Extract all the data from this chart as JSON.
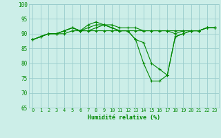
{
  "xlabel": "Humidité relative (%)",
  "xlim": [
    -0.5,
    23.5
  ],
  "ylim": [
    65,
    100
  ],
  "yticks": [
    65,
    70,
    75,
    80,
    85,
    90,
    95,
    100
  ],
  "xticks": [
    0,
    1,
    2,
    3,
    4,
    5,
    6,
    7,
    8,
    9,
    10,
    11,
    12,
    13,
    14,
    15,
    16,
    17,
    18,
    19,
    20,
    21,
    22,
    23
  ],
  "background_color": "#cceee8",
  "grid_color": "#99cccc",
  "line_color": "#008800",
  "curves": [
    [
      88,
      89,
      90,
      90,
      90,
      91,
      91,
      91,
      91,
      91,
      91,
      91,
      91,
      91,
      91,
      91,
      91,
      91,
      90,
      91,
      91,
      91,
      92,
      92
    ],
    [
      88,
      89,
      90,
      90,
      91,
      92,
      91,
      93,
      94,
      93,
      93,
      92,
      92,
      92,
      91,
      91,
      91,
      91,
      91,
      91,
      91,
      91,
      92,
      92
    ],
    [
      88,
      89,
      90,
      90,
      91,
      92,
      91,
      92,
      93,
      93,
      92,
      91,
      91,
      88,
      87,
      80,
      78,
      76,
      89,
      90,
      91,
      91,
      92,
      92
    ],
    [
      88,
      89,
      90,
      90,
      91,
      92,
      91,
      91,
      92,
      93,
      92,
      91,
      91,
      88,
      80,
      74,
      74,
      76,
      89,
      90,
      91,
      91,
      92,
      92
    ]
  ]
}
